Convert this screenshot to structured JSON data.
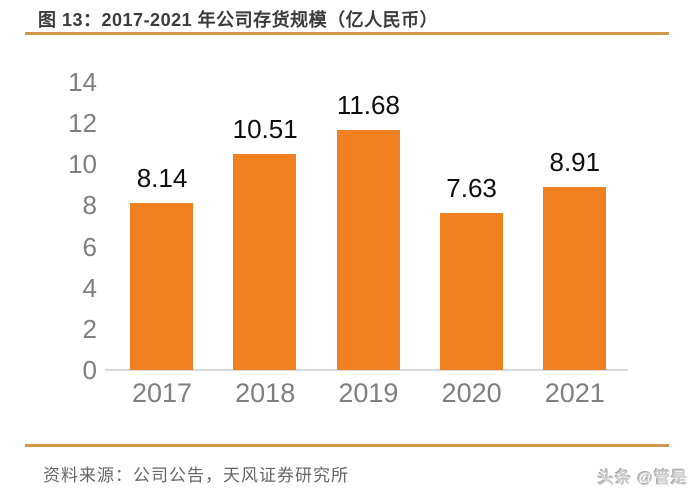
{
  "header": {
    "title": "图 13：2017-2021 年公司存货规模（亿人民币）",
    "rule_color": "#d2964a"
  },
  "chart_data": {
    "type": "bar",
    "title": "图 13：2017-2021 年公司存货规模（亿人民币）",
    "categories": [
      "2017",
      "2018",
      "2019",
      "2020",
      "2021"
    ],
    "values": [
      8.14,
      10.51,
      11.68,
      7.63,
      8.91
    ],
    "data_labels": [
      "8.14",
      "10.51",
      "11.68",
      "7.63",
      "8.91"
    ],
    "y_ticks": [
      0,
      2,
      4,
      6,
      8,
      10,
      12,
      14
    ],
    "ylim": [
      0,
      14
    ],
    "xlabel": "",
    "ylabel": "",
    "grid": false,
    "legend": false,
    "bar_color": "#f08020",
    "axis_label_color": "#7f7f7f",
    "data_label_color": "#0f0f0f",
    "baseline_color": "#d9d9d9"
  },
  "footer": {
    "source": "资料来源：公司公告，天风证券研究所",
    "rule_color": "#d2964a",
    "watermark": "头条 @管是"
  }
}
